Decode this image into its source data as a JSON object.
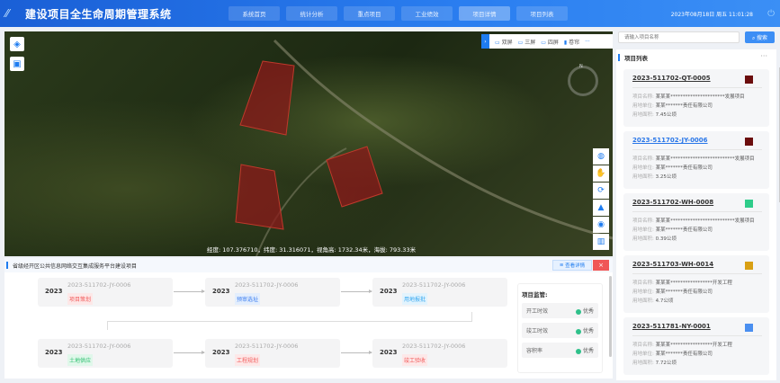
{
  "header": {
    "title": "建设项目全生命周期管理系统",
    "datetime": "2023年08月18日 周五 11:01:28",
    "nav": [
      "系统首页",
      "统计分析",
      "重点项目",
      "工业绩效",
      "项目详情",
      "项目列表"
    ],
    "active": 4
  },
  "map": {
    "screen_modes": [
      "双屏",
      "三屏",
      "四屏",
      "卷帘"
    ],
    "more": "···",
    "coords": "经度: 107.376710，纬度: 31.316071，视角高: 1732.34米，海拔: 793.33米",
    "parcel_color": "#8b1a1a",
    "compass_label": "N",
    "tool_icons": [
      "globe-icon",
      "hand-icon",
      "rotate-icon",
      "terrain-icon",
      "locate-icon",
      "book-icon"
    ]
  },
  "bottom": {
    "title": "省级经开区公共信息网络交互集成服务平台建设项目",
    "detail_button": "查看详情",
    "close": "×",
    "steps": [
      {
        "year": "2023",
        "code": "2023-511702-JY-0006",
        "label": "项目策划",
        "color": "#f25c5c",
        "bg": "#fde8e8"
      },
      {
        "year": "2023",
        "code": "2023-511702-JY-0006",
        "label": "预审选址",
        "color": "#3c7ef0",
        "bg": "#e3eefd"
      },
      {
        "year": "2023",
        "code": "2023-511702-JY-0006",
        "label": "用地报批",
        "color": "#35a7f0",
        "bg": "#e2f3fd"
      },
      {
        "year": "2023",
        "code": "2023-511702-JY-0006",
        "label": "土地供应",
        "color": "#2cbf6e",
        "bg": "#e0f7ea"
      },
      {
        "year": "2023",
        "code": "2023-511702-JY-0006",
        "label": "工程规划",
        "color": "#f25c5c",
        "bg": "#fde8e8"
      },
      {
        "year": "2023",
        "code": "2023-511702-JY-0006",
        "label": "竣工验收",
        "color": "#f25c5c",
        "bg": "#fde8e8"
      }
    ],
    "supervision": {
      "title": "项目监管:",
      "items": [
        {
          "label": "开工时效",
          "status": "优秀"
        },
        {
          "label": "竣工时效",
          "status": "优秀"
        },
        {
          "label": "容积率",
          "status": "优秀"
        }
      ]
    }
  },
  "right": {
    "search_placeholder": "请输入项目名称",
    "search_button": "搜索",
    "list_title": "项目列表",
    "more": "···",
    "labels": {
      "name": "项目名称:",
      "unit": "用地单位:",
      "area": "用地面积:"
    },
    "cards": [
      {
        "id": "2023-511702-QT-0005",
        "color": "#6b0d0d",
        "name": "某某某**********************发展项目",
        "unit": "某某*******责任有限公司",
        "area": "7.45公顷",
        "active": false
      },
      {
        "id": "2023-511702-JY-0006",
        "color": "#6b0d0d",
        "name": "某某某**************************发展项目",
        "unit": "某某*******责任有限公司",
        "area": "3.25公顷",
        "active": true
      },
      {
        "id": "2023-511702-WH-0008",
        "color": "#2ecc8a",
        "name": "某某某**************************发展项目",
        "unit": "某某*******责任有限公司",
        "area": "0.39公顷",
        "active": false
      },
      {
        "id": "2023-511703-WH-0014",
        "color": "#d9a014",
        "name": "某某某*****************开发工程",
        "unit": "某某*******责任有限公司",
        "area": "4.7公顷",
        "active": false
      },
      {
        "id": "2023-511781-NY-0001",
        "color": "#4a8ff0",
        "name": "某某某*****************开发工程",
        "unit": "某某*******责任有限公司",
        "area": "7.72公顷",
        "active": false
      }
    ]
  }
}
